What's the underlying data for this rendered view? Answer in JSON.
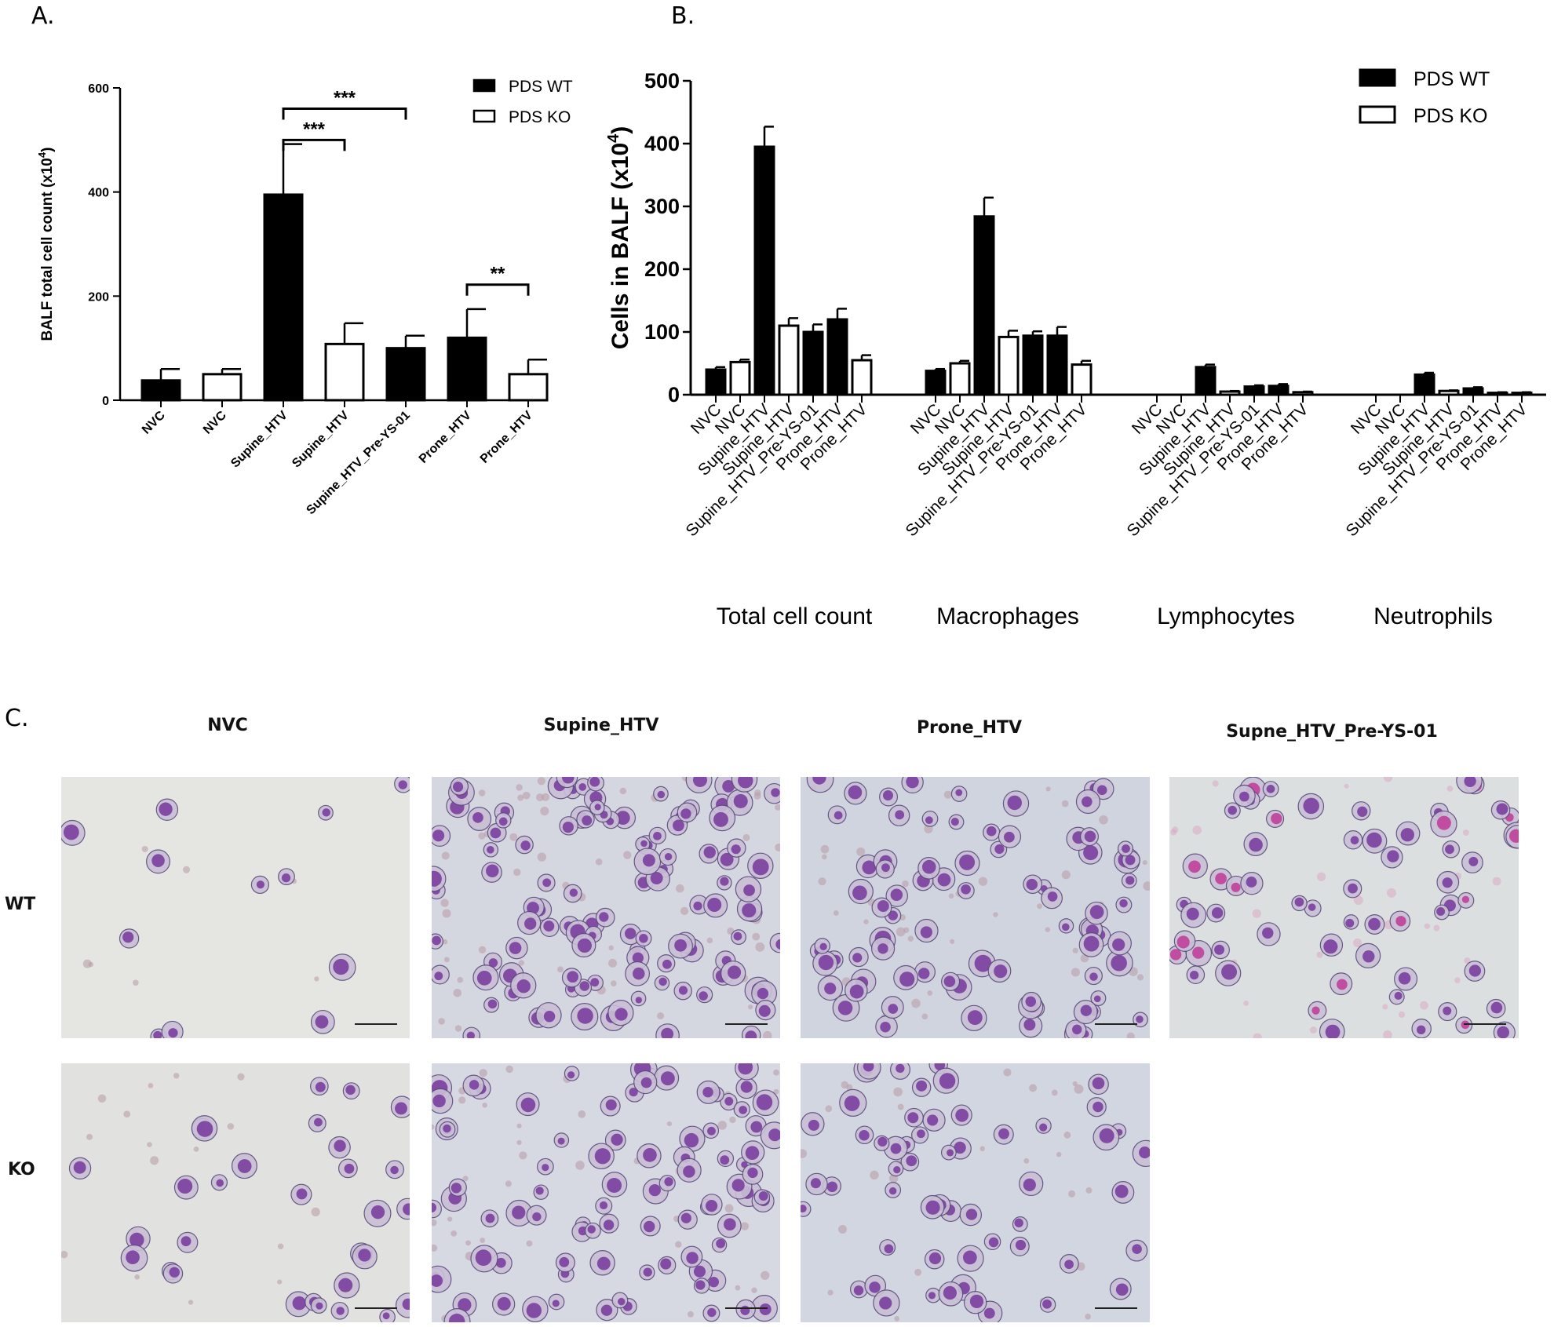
{
  "panel_labels": {
    "a": "A.",
    "b": "B.",
    "c": "C."
  },
  "colors": {
    "wt_fill": "#000000",
    "ko_fill": "#ffffff",
    "ko_stroke": "#000000"
  },
  "chart_data": [
    {
      "type": "bar",
      "panel": "A",
      "ylabel": "BALF total cell count (x10",
      "ylabel_sup": "4",
      "ylabel_close": ")",
      "ylim": [
        0,
        600
      ],
      "yticks": [
        0,
        200,
        400,
        600
      ],
      "legend": {
        "placement": "top-right",
        "entries": [
          "PDS WT",
          "PDS KO"
        ]
      },
      "categories": [
        "NVC",
        "NVC",
        "Supine_HTV",
        "Supine_HTV",
        "Supine_HTV_Pre-YS-01",
        "Prone_HTV",
        "Prone_HTV"
      ],
      "groups": [
        "WT",
        "KO",
        "WT",
        "KO",
        "WT",
        "WT",
        "KO"
      ],
      "values": [
        38,
        50,
        395,
        108,
        100,
        120,
        50
      ],
      "errors": [
        22,
        10,
        97,
        40,
        24,
        55,
        28
      ],
      "significance": [
        {
          "from": 2,
          "to": 4,
          "label": "***",
          "y": 560
        },
        {
          "from": 2,
          "to": 3,
          "label": "***",
          "y": 500
        },
        {
          "from": 5,
          "to": 6,
          "label": "**",
          "y": 222
        }
      ]
    },
    {
      "type": "bar",
      "panel": "B",
      "ylabel": "Cells in BALF (x10",
      "ylabel_sup": "4",
      "ylabel_close": ")",
      "ylim": [
        0,
        500
      ],
      "yticks": [
        0,
        100,
        200,
        300,
        400,
        500
      ],
      "legend": {
        "placement": "top-right",
        "entries": [
          "PDS WT",
          "PDS KO"
        ]
      },
      "bar_labels": [
        "NVC",
        "NVC",
        "Supine_HTV",
        "Supine_HTV",
        "Supine_HTV_Pre-YS-01",
        "Prone_HTV",
        "Prone_HTV"
      ],
      "bar_groups": [
        "WT",
        "KO",
        "WT",
        "KO",
        "WT",
        "WT",
        "KO"
      ],
      "series": [
        {
          "name": "Total cell count",
          "values": [
            40,
            52,
            395,
            110,
            100,
            120,
            55
          ],
          "errors": [
            4,
            4,
            32,
            12,
            12,
            17,
            8
          ]
        },
        {
          "name": "Macrophages",
          "values": [
            38,
            50,
            284,
            92,
            94,
            94,
            48
          ],
          "errors": [
            3,
            4,
            30,
            10,
            7,
            14,
            6
          ]
        },
        {
          "name": "Lymphocytes",
          "values": [
            0,
            0,
            44,
            5,
            13,
            14,
            4
          ],
          "errors": [
            0,
            0,
            4,
            1,
            2,
            3,
            1
          ]
        },
        {
          "name": "Neutrophils",
          "values": [
            0,
            0,
            32,
            6,
            10,
            3,
            3
          ],
          "errors": [
            0,
            0,
            3,
            1,
            2,
            1,
            1
          ]
        }
      ]
    }
  ],
  "micrographs": {
    "column_titles": [
      "NVC",
      "Supine_HTV",
      "Prone_HTV",
      "Supne_HTV_Pre-YS-01"
    ],
    "row_labels": [
      "WT",
      "KO"
    ]
  }
}
